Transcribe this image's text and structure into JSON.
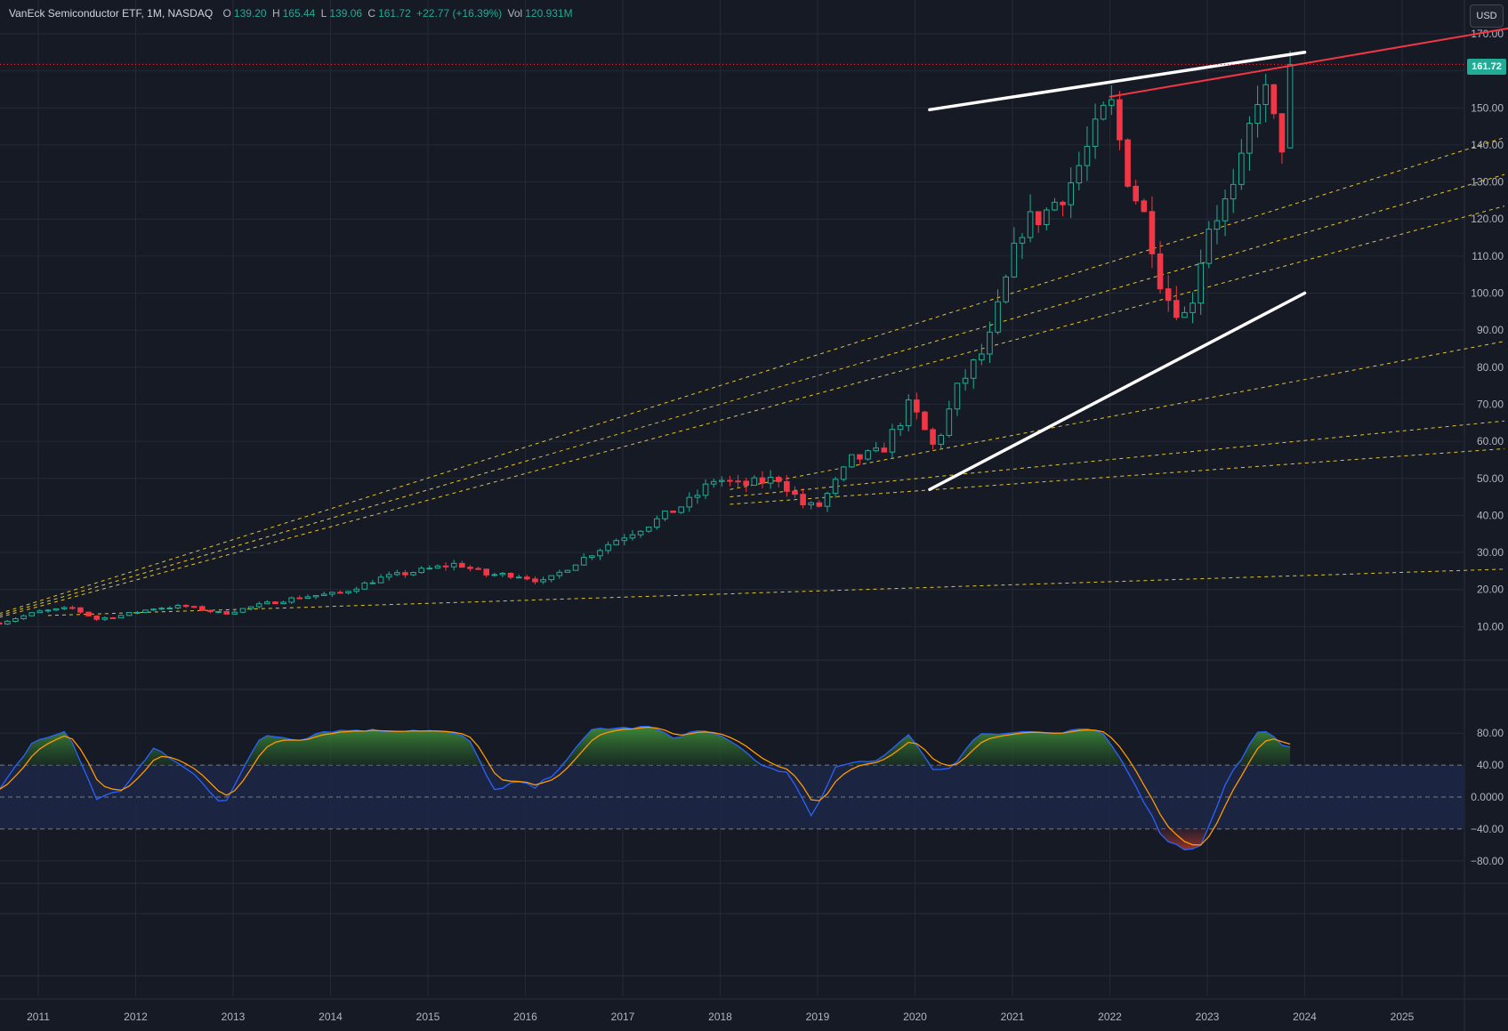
{
  "legend": {
    "symbol": "VanEck Semiconductor ETF, 1M, NASDAQ",
    "o_label": "O",
    "o": "139.20",
    "h_label": "H",
    "h": "165.44",
    "l_label": "L",
    "l": "139.06",
    "c_label": "C",
    "c": "161.72",
    "change": "+22.77 (+16.39%)",
    "vol_label": "Vol",
    "vol": "120.931M"
  },
  "currency": "USD",
  "last_price": "161.72",
  "colors": {
    "background": "#161a25",
    "up": "#22ab94",
    "down": "#f23645",
    "grid": "#242936",
    "trendline_white": "#ffffff",
    "trendline_red": "#f23645",
    "fan": "#e0c32f",
    "osc_fast": "#2962ff",
    "osc_slow": "#ff9800",
    "osc_band": "#1c2746"
  },
  "chart_data": [
    {
      "type": "candlestick",
      "interval": "1M",
      "ylim": [
        0,
        175
      ],
      "y_ticks": [
        "170.00",
        "160.00",
        "150.00",
        "140.00",
        "130.00",
        "120.00",
        "110.00",
        "100.00",
        "90.00",
        "80.00",
        "70.00",
        "60.00",
        "50.00",
        "40.00",
        "30.00",
        "20.00",
        "10.00"
      ],
      "x_ticks": [
        "2011",
        "2012",
        "2013",
        "2014",
        "2015",
        "2016",
        "2017",
        "2018",
        "2019",
        "2020",
        "2021",
        "2022",
        "2023",
        "2024",
        "2025"
      ],
      "xlim": [
        2010.6,
        2026.05
      ],
      "anchors": [
        [
          2010.6,
          11
        ],
        [
          2011.0,
          14
        ],
        [
          2011.35,
          15
        ],
        [
          2011.6,
          12
        ],
        [
          2011.85,
          13
        ],
        [
          2012.2,
          15
        ],
        [
          2012.5,
          15.5
        ],
        [
          2012.9,
          13.5
        ],
        [
          2013.3,
          16
        ],
        [
          2013.7,
          18
        ],
        [
          2014.1,
          19
        ],
        [
          2014.5,
          23
        ],
        [
          2014.9,
          25
        ],
        [
          2015.3,
          27
        ],
        [
          2015.6,
          24
        ],
        [
          2015.9,
          24
        ],
        [
          2016.2,
          22
        ],
        [
          2016.5,
          27
        ],
        [
          2016.9,
          33
        ],
        [
          2017.3,
          38
        ],
        [
          2017.7,
          44
        ],
        [
          2017.95,
          50
        ],
        [
          2018.2,
          48
        ],
        [
          2018.6,
          50
        ],
        [
          2018.85,
          43
        ],
        [
          2019.0,
          42
        ],
        [
          2019.35,
          55
        ],
        [
          2019.65,
          57
        ],
        [
          2019.95,
          70
        ],
        [
          2020.2,
          58
        ],
        [
          2020.45,
          75
        ],
        [
          2020.75,
          86
        ],
        [
          2020.9,
          100
        ],
        [
          2021.1,
          118
        ],
        [
          2021.35,
          122
        ],
        [
          2021.6,
          130
        ],
        [
          2021.85,
          143
        ],
        [
          2022.0,
          152
        ],
        [
          2022.2,
          130
        ],
        [
          2022.4,
          118
        ],
        [
          2022.55,
          100
        ],
        [
          2022.8,
          93
        ],
        [
          2023.0,
          118
        ],
        [
          2023.3,
          128
        ],
        [
          2023.45,
          146
        ],
        [
          2023.55,
          158
        ],
        [
          2023.7,
          144
        ],
        [
          2023.8,
          139
        ],
        [
          2023.88,
          161.72
        ]
      ],
      "trendlines": [
        {
          "color": "white",
          "from": [
            2020.15,
            149.5
          ],
          "to": [
            2024.0,
            165
          ]
        },
        {
          "color": "white",
          "from": [
            2020.15,
            47
          ],
          "to": [
            2024.0,
            100
          ]
        },
        {
          "color": "red",
          "from": [
            2022.0,
            153
          ],
          "to": [
            2026.1,
            171.5
          ]
        }
      ],
      "fan_lines": [
        {
          "from": [
            2010.6,
            13.5
          ],
          "to": [
            2026.05,
            142
          ]
        },
        {
          "from": [
            2010.6,
            13
          ],
          "to": [
            2026.05,
            132
          ]
        },
        {
          "from": [
            2010.6,
            12.5
          ],
          "to": [
            2026.05,
            123.5
          ]
        },
        {
          "from": [
            2018.1,
            47
          ],
          "to": [
            2026.05,
            87
          ]
        },
        {
          "from": [
            2018.1,
            45
          ],
          "to": [
            2026.05,
            65.5
          ]
        },
        {
          "from": [
            2018.1,
            43
          ],
          "to": [
            2026.05,
            58
          ]
        },
        {
          "from": [
            2011.1,
            13
          ],
          "to": [
            2026.05,
            25.5
          ]
        }
      ]
    },
    {
      "type": "line",
      "name": "oscillator",
      "ylim": [
        -90,
        90
      ],
      "y_ticks": [
        "80.00",
        "40.00",
        "0.0000",
        "−40.00",
        "−80.00"
      ],
      "levels": [
        40,
        0,
        -40
      ],
      "anchors": [
        [
          2010.6,
          8
        ],
        [
          2010.95,
          70
        ],
        [
          2011.3,
          82
        ],
        [
          2011.6,
          -2
        ],
        [
          2011.85,
          8
        ],
        [
          2012.2,
          62
        ],
        [
          2012.6,
          28
        ],
        [
          2012.9,
          -10
        ],
        [
          2013.3,
          78
        ],
        [
          2013.7,
          72
        ],
        [
          2013.9,
          82
        ],
        [
          2014.3,
          84
        ],
        [
          2014.6,
          83
        ],
        [
          2014.9,
          84
        ],
        [
          2015.1,
          82
        ],
        [
          2015.4,
          76
        ],
        [
          2015.7,
          5
        ],
        [
          2015.9,
          20
        ],
        [
          2016.1,
          12
        ],
        [
          2016.3,
          30
        ],
        [
          2016.7,
          86
        ],
        [
          2017.0,
          86
        ],
        [
          2017.3,
          88
        ],
        [
          2017.5,
          74
        ],
        [
          2017.8,
          84
        ],
        [
          2018.1,
          72
        ],
        [
          2018.4,
          40
        ],
        [
          2018.7,
          30
        ],
        [
          2018.95,
          -25
        ],
        [
          2019.2,
          40
        ],
        [
          2019.6,
          45
        ],
        [
          2019.95,
          80
        ],
        [
          2020.2,
          30
        ],
        [
          2020.4,
          40
        ],
        [
          2020.65,
          80
        ],
        [
          2020.9,
          80
        ],
        [
          2021.2,
          82
        ],
        [
          2021.5,
          78
        ],
        [
          2021.7,
          86
        ],
        [
          2021.95,
          78
        ],
        [
          2022.2,
          30
        ],
        [
          2022.55,
          -52
        ],
        [
          2022.8,
          -67
        ],
        [
          2022.95,
          -58
        ],
        [
          2023.2,
          20
        ],
        [
          2023.45,
          68
        ],
        [
          2023.55,
          85
        ],
        [
          2023.8,
          64
        ],
        [
          2023.88,
          64
        ]
      ]
    }
  ]
}
